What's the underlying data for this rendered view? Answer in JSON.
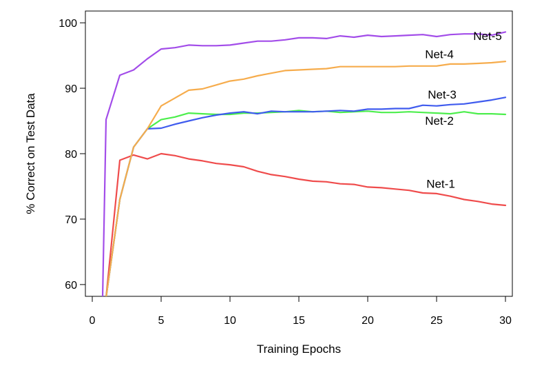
{
  "chart_data": {
    "type": "line",
    "title": "",
    "xlabel": "Training Epochs",
    "ylabel": "% Correct on Test Data",
    "xlim": [
      -0.5,
      30.5
    ],
    "ylim": [
      58.2,
      101.8
    ],
    "xticks": [
      0,
      5,
      10,
      15,
      20,
      25,
      30
    ],
    "yticks": [
      60,
      70,
      80,
      90,
      100
    ],
    "grid": false,
    "legend": "none",
    "series": [
      {
        "name": "Net-1",
        "color": "#ef4b4b",
        "x": [
          0,
          1,
          2,
          3,
          4,
          5,
          6,
          7,
          8,
          9,
          10,
          11,
          12,
          13,
          14,
          15,
          16,
          17,
          18,
          19,
          20,
          21,
          22,
          23,
          24,
          25,
          26,
          27,
          28,
          29,
          30
        ],
        "y": [
          58,
          58,
          79.0,
          79.8,
          79.2,
          80.0,
          79.7,
          79.2,
          78.9,
          78.5,
          78.3,
          78.0,
          77.3,
          76.8,
          76.5,
          76.1,
          75.8,
          75.7,
          75.4,
          75.3,
          74.9,
          74.8,
          74.6,
          74.4,
          74.0,
          73.9,
          73.5,
          73.0,
          72.7,
          72.3,
          72.1
        ]
      },
      {
        "name": "Net-2",
        "color": "#4cee4c",
        "x": [
          0,
          1,
          2,
          3,
          4,
          5,
          6,
          7,
          8,
          9,
          10,
          11,
          12,
          13,
          14,
          15,
          16,
          17,
          18,
          19,
          20,
          21,
          22,
          23,
          24,
          25,
          26,
          27,
          28,
          29,
          30
        ],
        "y": [
          58,
          58,
          73.0,
          81.0,
          83.8,
          85.2,
          85.6,
          86.2,
          86.1,
          86.0,
          86.0,
          86.2,
          86.2,
          86.3,
          86.4,
          86.6,
          86.4,
          86.5,
          86.3,
          86.4,
          86.5,
          86.3,
          86.3,
          86.4,
          86.3,
          86.2,
          86.1,
          86.4,
          86.1,
          86.1,
          86.0
        ]
      },
      {
        "name": "Net-3",
        "color": "#3f5bee",
        "x": [
          0,
          1,
          2,
          3,
          4,
          5,
          6,
          7,
          8,
          9,
          10,
          11,
          12,
          13,
          14,
          15,
          16,
          17,
          18,
          19,
          20,
          21,
          22,
          23,
          24,
          25,
          26,
          27,
          28,
          29,
          30
        ],
        "y": [
          58,
          58,
          73.0,
          81.0,
          83.8,
          83.9,
          84.5,
          85.0,
          85.5,
          85.9,
          86.2,
          86.4,
          86.1,
          86.5,
          86.4,
          86.4,
          86.4,
          86.5,
          86.6,
          86.5,
          86.8,
          86.8,
          86.9,
          86.9,
          87.4,
          87.3,
          87.5,
          87.6,
          87.9,
          88.2,
          88.6
        ]
      },
      {
        "name": "Net-4",
        "color": "#f6ac4c",
        "x": [
          0,
          1,
          2,
          3,
          4,
          5,
          6,
          7,
          8,
          9,
          10,
          11,
          12,
          13,
          14,
          15,
          16,
          17,
          18,
          19,
          20,
          21,
          22,
          23,
          24,
          25,
          26,
          27,
          28,
          29,
          30
        ],
        "y": [
          58,
          58,
          73.0,
          81.0,
          83.8,
          87.3,
          88.5,
          89.7,
          89.9,
          90.5,
          91.1,
          91.4,
          91.9,
          92.3,
          92.7,
          92.8,
          92.9,
          93.0,
          93.3,
          93.3,
          93.3,
          93.3,
          93.3,
          93.4,
          93.4,
          93.4,
          93.7,
          93.7,
          93.8,
          93.9,
          94.1
        ]
      },
      {
        "name": "Net-5",
        "color": "#a24ce9",
        "x": [
          0,
          0.75,
          1,
          2,
          3,
          4,
          5,
          6,
          7,
          8,
          9,
          10,
          11,
          12,
          13,
          14,
          15,
          16,
          17,
          18,
          19,
          20,
          21,
          22,
          23,
          24,
          25,
          26,
          27,
          28,
          29,
          30
        ],
        "y": [
          58,
          58,
          85.2,
          92.0,
          92.8,
          94.5,
          96.0,
          96.2,
          96.6,
          96.5,
          96.5,
          96.6,
          96.9,
          97.2,
          97.2,
          97.4,
          97.7,
          97.7,
          97.6,
          98.0,
          97.8,
          98.1,
          97.9,
          98.0,
          98.1,
          98.2,
          97.9,
          98.2,
          98.3,
          98.3,
          98.1,
          98.6
        ]
      }
    ],
    "annotations": [
      {
        "text": "Net-5",
        "x": 28.7,
        "y": 97.4
      },
      {
        "text": "Net-4",
        "x": 25.2,
        "y": 94.6
      },
      {
        "text": "Net-3",
        "x": 25.4,
        "y": 88.4
      },
      {
        "text": "Net-2",
        "x": 25.2,
        "y": 84.4
      },
      {
        "text": "Net-1",
        "x": 25.3,
        "y": 74.8
      }
    ]
  }
}
